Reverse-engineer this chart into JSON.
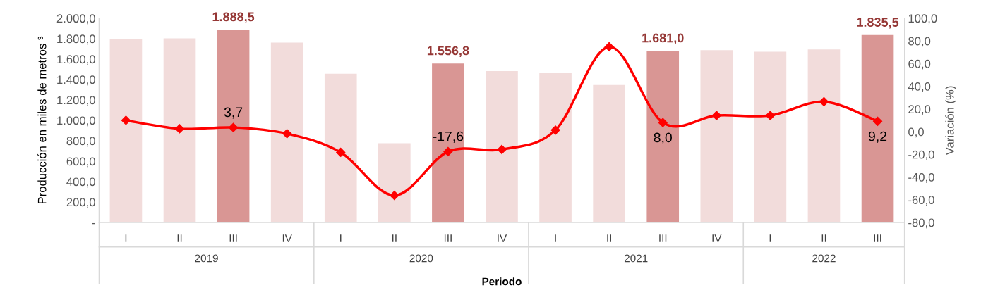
{
  "chart_data": {
    "type": "bar",
    "xlabel": "Periodo",
    "ylabel": "Producción en miles de metros ³",
    "y2label": "Variación (%)",
    "categories": [
      "I",
      "II",
      "III",
      "IV",
      "I",
      "II",
      "III",
      "IV",
      "I",
      "II",
      "III",
      "IV",
      "I",
      "II",
      "III"
    ],
    "annotations": [
      "2019",
      "2020",
      "2021",
      "2022"
    ],
    "series": [
      {
        "colors": [
          "#f2dcdb",
          "#f2dcdb",
          "#d99694",
          "#f2dcdb",
          "#f2dcdb",
          "#f2dcdb",
          "#d99694",
          "#f2dcdb",
          "#f2dcdb",
          "#f2dcdb",
          "#d99694",
          "#f2dcdb",
          "#f2dcdb",
          "#f2dcdb",
          "#d99694"
        ],
        "values": [
          1796,
          1803,
          1888.5,
          1762,
          1456,
          775,
          1556.8,
          1483,
          1469,
          1347,
          1681.0,
          1687,
          1673,
          1694,
          1835.5
        ],
        "value_labels": [
          null,
          null,
          "1.888,5",
          null,
          null,
          null,
          "1.556,8",
          null,
          null,
          null,
          "1.681,0",
          null,
          null,
          null,
          "1.835,5"
        ]
      },
      {
        "type": "line",
        "axis": "y2",
        "color": "#ff0000",
        "values": [
          10.0,
          2.6,
          3.7,
          -1.7,
          -18.2,
          -56.2,
          -17.6,
          -15.7,
          1.4,
          74.9,
          8.0,
          14.3,
          14.3,
          26.5,
          9.2
        ],
        "value_labels": [
          null,
          null,
          "3,7",
          null,
          null,
          null,
          "-17,6",
          null,
          null,
          null,
          "8,0",
          null,
          null,
          null,
          "9,2"
        ]
      }
    ],
    "ylim": [
      0,
      2000
    ],
    "yticks": [
      {
        "value": 0,
        "label": "-"
      },
      {
        "value": 200,
        "label": "200,0"
      },
      {
        "value": 400,
        "label": "400,0"
      },
      {
        "value": 600,
        "label": "600,0"
      },
      {
        "value": 800,
        "label": "800,0"
      },
      {
        "value": 1000,
        "label": "1.000,0"
      },
      {
        "value": 1200,
        "label": "1.200,0"
      },
      {
        "value": 1400,
        "label": "1.400,0"
      },
      {
        "value": 1600,
        "label": "1.600,0"
      },
      {
        "value": 1800,
        "label": "1.800,0"
      },
      {
        "value": 2000,
        "label": "2.000,0"
      }
    ],
    "y2lim": [
      -80,
      100
    ],
    "y2ticks": [
      {
        "value": -80,
        "label": "-80,0"
      },
      {
        "value": -60,
        "label": "-60,0"
      },
      {
        "value": -40,
        "label": "-40,0"
      },
      {
        "value": -20,
        "label": "-20,0"
      },
      {
        "value": 0,
        "label": "0,0"
      },
      {
        "value": 20,
        "label": "20,0"
      },
      {
        "value": 40,
        "label": "40,0"
      },
      {
        "value": 60,
        "label": "60,0"
      },
      {
        "value": 80,
        "label": "80,0"
      },
      {
        "value": 100,
        "label": "100,0"
      }
    ],
    "marker": "diamond",
    "line_style": "solid",
    "grid": false,
    "legend": false
  }
}
